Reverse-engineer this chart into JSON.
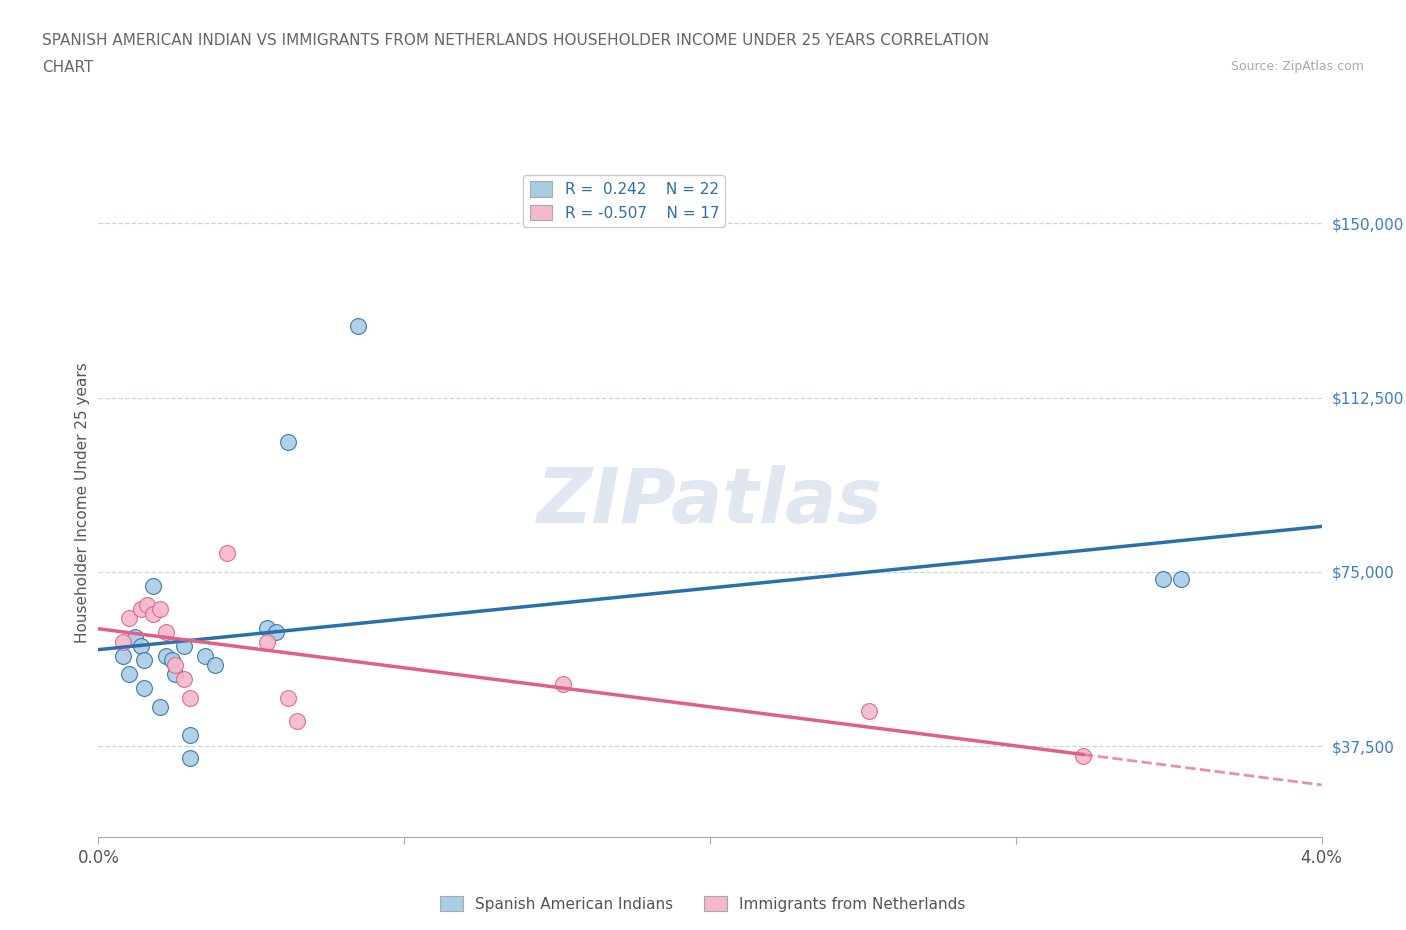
{
  "title_line1": "SPANISH AMERICAN INDIAN VS IMMIGRANTS FROM NETHERLANDS HOUSEHOLDER INCOME UNDER 25 YEARS CORRELATION",
  "title_line2": "CHART",
  "source": "Source: ZipAtlas.com",
  "ylabel": "Householder Income Under 25 years",
  "yticks": [
    37500,
    75000,
    112500,
    150000
  ],
  "ytick_labels": [
    "$37,500",
    "$75,000",
    "$112,500",
    "$150,000"
  ],
  "xmin": 0.0,
  "xmax": 4.0,
  "ymin": 18000,
  "ymax": 162000,
  "watermark": "ZIPatlas",
  "legend_r1": "R =  0.242",
  "legend_n1": "N = 22",
  "legend_r2": "R = -0.507",
  "legend_n2": "N = 17",
  "blue_color": "#a8cce4",
  "pink_color": "#f5b8cc",
  "blue_line_color": "#2c6fad",
  "pink_line_color": "#e06088",
  "blue_scatter": [
    [
      0.08,
      57000
    ],
    [
      0.1,
      53000
    ],
    [
      0.12,
      61000
    ],
    [
      0.14,
      59000
    ],
    [
      0.15,
      56000
    ],
    [
      0.15,
      50000
    ],
    [
      0.18,
      72000
    ],
    [
      0.2,
      46000
    ],
    [
      0.22,
      57000
    ],
    [
      0.24,
      56000
    ],
    [
      0.25,
      53000
    ],
    [
      0.28,
      59000
    ],
    [
      0.3,
      40000
    ],
    [
      0.3,
      35000
    ],
    [
      0.35,
      57000
    ],
    [
      0.38,
      55000
    ],
    [
      0.55,
      63000
    ],
    [
      0.58,
      62000
    ],
    [
      0.62,
      103000
    ],
    [
      0.85,
      128000
    ],
    [
      3.48,
      73500
    ],
    [
      3.54,
      73500
    ]
  ],
  "pink_scatter": [
    [
      0.08,
      60000
    ],
    [
      0.1,
      65000
    ],
    [
      0.14,
      67000
    ],
    [
      0.16,
      68000
    ],
    [
      0.18,
      66000
    ],
    [
      0.2,
      67000
    ],
    [
      0.22,
      62000
    ],
    [
      0.25,
      55000
    ],
    [
      0.28,
      52000
    ],
    [
      0.3,
      48000
    ],
    [
      0.42,
      79000
    ],
    [
      0.55,
      60000
    ],
    [
      0.62,
      48000
    ],
    [
      0.65,
      43000
    ],
    [
      1.52,
      51000
    ],
    [
      2.52,
      45000
    ],
    [
      3.22,
      35500
    ]
  ],
  "background_color": "#ffffff",
  "grid_color": "#ccd5e0",
  "title_color": "#666666",
  "axis_label_color": "#555555",
  "right_tick_color": "#3a7dc9"
}
